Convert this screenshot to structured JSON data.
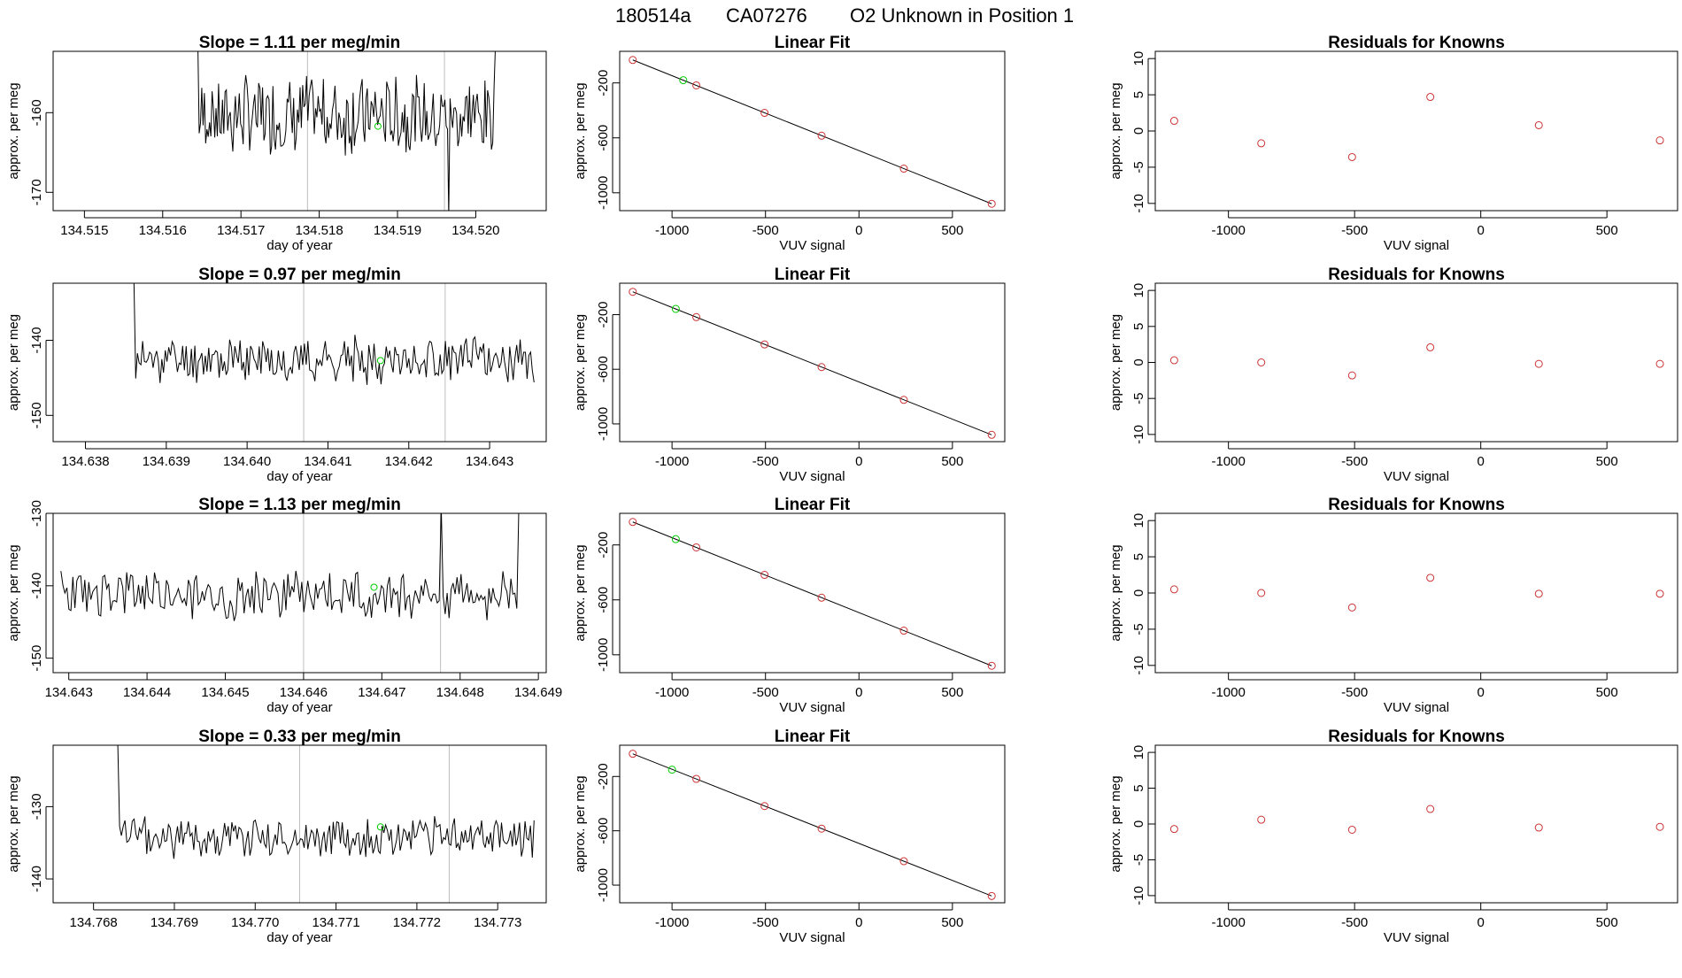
{
  "figure": {
    "title_parts": [
      "180514a",
      "CA07276",
      "O2 Unknown in Position  1"
    ]
  },
  "colors": {
    "line": "#000000",
    "frame": "#000000",
    "vline": "#bebebe",
    "green": "#00cc00",
    "red": "#cd3333",
    "fit": "#000000"
  },
  "labels": {
    "doy_xlabel": "day of year",
    "per_meg_ylabel": "approx. per meg",
    "vuv_xlabel": "VUV signal",
    "fit_title": "Linear Fit",
    "resid_title": "Residuals for Knowns"
  },
  "chart_data": [
    {
      "type": "line",
      "panel": "time",
      "row": 1,
      "title": "Slope =  1.11  per meg/min",
      "xlabel": "day of year",
      "ylabel": "approx. per meg",
      "xlim": [
        134.5146,
        134.5209
      ],
      "ylim": [
        -172.3,
        -152.3
      ],
      "xticks": [
        "134.515",
        "134.516",
        "134.517",
        "134.518",
        "134.519",
        "134.520"
      ],
      "yticks": [
        "-160",
        "-170"
      ],
      "start": 134.51645,
      "end": 134.52025,
      "level": -160.3,
      "amp": 4.2,
      "seed": 7,
      "spikes": [
        {
          "x": 134.51645,
          "y": -152.0
        },
        {
          "x": 134.52025,
          "y": -152.0
        },
        {
          "x": 134.51965,
          "y": -173.0
        }
      ],
      "vlines": [
        134.51785,
        134.5196
      ],
      "green_point": {
        "x": 134.51875,
        "y": -161.7
      }
    },
    {
      "type": "line",
      "panel": "time",
      "row": 2,
      "title": "Slope =  0.97  per meg/min",
      "xlabel": "day of year",
      "ylabel": "approx. per meg",
      "xlim": [
        134.6376,
        134.6437
      ],
      "ylim": [
        -153.5,
        -132.4
      ],
      "xticks": [
        "134.638",
        "134.639",
        "134.640",
        "134.641",
        "134.642",
        "134.643"
      ],
      "yticks": [
        "-140",
        "-150"
      ],
      "start": 134.6386,
      "end": 134.64355,
      "level": -142.6,
      "amp": 2.6,
      "seed": 11,
      "spikes": [
        {
          "x": 134.6386,
          "y": -132.0
        }
      ],
      "vlines": [
        134.6407,
        134.64245
      ],
      "green_point": {
        "x": 134.64165,
        "y": -142.7
      }
    },
    {
      "type": "line",
      "panel": "time",
      "row": 3,
      "title": "Slope =  1.13  per meg/min",
      "xlabel": "day of year",
      "ylabel": "approx. per meg",
      "xlim": [
        134.6428,
        134.6491
      ],
      "ylim": [
        -152.0,
        -130.0
      ],
      "xticks": [
        "134.643",
        "134.644",
        "134.645",
        "134.646",
        "134.647",
        "134.648",
        "134.649"
      ],
      "yticks": [
        "-130",
        "-140",
        "-150"
      ],
      "start": 134.6429,
      "end": 134.64875,
      "level": -141.2,
      "amp": 3.0,
      "seed": 23,
      "spikes": [
        {
          "x": 134.64775,
          "y": -129.0
        },
        {
          "x": 134.64875,
          "y": -129.0
        }
      ],
      "vlines": [
        134.646,
        134.64775
      ],
      "green_point": {
        "x": 134.6469,
        "y": -140.2
      }
    },
    {
      "type": "line",
      "panel": "time",
      "row": 4,
      "title": "Slope =  0.33  per meg/min",
      "xlabel": "day of year",
      "ylabel": "approx. per meg",
      "xlim": [
        134.7675,
        134.7736
      ],
      "ylim": [
        -143.3,
        -121.5
      ],
      "xticks": [
        "134.768",
        "134.769",
        "134.770",
        "134.771",
        "134.772",
        "134.773"
      ],
      "yticks": [
        "-130",
        "-140"
      ],
      "start": 134.7683,
      "end": 134.77345,
      "level": -134.2,
      "amp": 2.5,
      "seed": 37,
      "spikes": [
        {
          "x": 134.7683,
          "y": -121.0
        }
      ],
      "vlines": [
        134.77055,
        134.7724
      ],
      "green_point": {
        "x": 134.77155,
        "y": -132.8
      }
    },
    {
      "type": "scatter",
      "panel": "fit",
      "row": 1,
      "title": "Linear Fit",
      "xlabel": "VUV signal",
      "ylabel": "approx. per meg",
      "xlim": [
        -1280,
        780
      ],
      "ylim": [
        -1130,
        30
      ],
      "xticks": [
        -1000,
        -500,
        0,
        500
      ],
      "yticks": [
        -200,
        -600,
        -1000
      ],
      "fit_line": {
        "x": [
          -1210,
          710
        ],
        "y": [
          -33,
          -1080
        ]
      },
      "points": {
        "x": [
          -1210,
          -870,
          -505,
          -200,
          240,
          710
        ],
        "y": [
          -33,
          -218,
          -418,
          -584,
          -824,
          -1080
        ]
      },
      "unknown": {
        "x": -940,
        "y": -180
      }
    },
    {
      "type": "scatter",
      "panel": "fit",
      "row": 2,
      "title": "Linear Fit",
      "xlabel": "VUV signal",
      "ylabel": "approx. per meg",
      "xlim": [
        -1280,
        780
      ],
      "ylim": [
        -1130,
        30
      ],
      "xticks": [
        -1000,
        -500,
        0,
        500
      ],
      "yticks": [
        -200,
        -600,
        -1000
      ],
      "fit_line": {
        "x": [
          -1210,
          710
        ],
        "y": [
          -33,
          -1080
        ]
      },
      "points": {
        "x": [
          -1210,
          -870,
          -505,
          -200,
          240,
          710
        ],
        "y": [
          -33,
          -218,
          -418,
          -584,
          -824,
          -1080
        ]
      },
      "unknown": {
        "x": -980,
        "y": -158
      }
    },
    {
      "type": "scatter",
      "panel": "fit",
      "row": 3,
      "title": "Linear Fit",
      "xlabel": "VUV signal",
      "ylabel": "approx. per meg",
      "xlim": [
        -1280,
        780
      ],
      "ylim": [
        -1130,
        30
      ],
      "xticks": [
        -1000,
        -500,
        0,
        500
      ],
      "yticks": [
        -200,
        -600,
        -1000
      ],
      "fit_line": {
        "x": [
          -1210,
          710
        ],
        "y": [
          -33,
          -1080
        ]
      },
      "points": {
        "x": [
          -1210,
          -870,
          -505,
          -200,
          240,
          710
        ],
        "y": [
          -33,
          -218,
          -418,
          -584,
          -824,
          -1080
        ]
      },
      "unknown": {
        "x": -980,
        "y": -158
      }
    },
    {
      "type": "scatter",
      "panel": "fit",
      "row": 4,
      "title": "Linear Fit",
      "xlabel": "VUV signal",
      "ylabel": "approx. per meg",
      "xlim": [
        -1280,
        780
      ],
      "ylim": [
        -1130,
        30
      ],
      "xticks": [
        -1000,
        -500,
        0,
        500
      ],
      "yticks": [
        -200,
        -600,
        -1000
      ],
      "fit_line": {
        "x": [
          -1210,
          710
        ],
        "y": [
          -33,
          -1080
        ]
      },
      "points": {
        "x": [
          -1210,
          -870,
          -505,
          -200,
          240,
          710
        ],
        "y": [
          -33,
          -218,
          -418,
          -584,
          -824,
          -1080
        ]
      },
      "unknown": {
        "x": -1000,
        "y": -150
      }
    },
    {
      "type": "scatter",
      "panel": "resid",
      "row": 1,
      "title": "Residuals for Knowns",
      "xlabel": "VUV signal",
      "ylabel": "approx. per meg",
      "xlim": [
        -1290,
        780
      ],
      "ylim": [
        -11,
        11
      ],
      "xticks": [
        -1000,
        -500,
        0,
        500
      ],
      "yticks": [
        10,
        5,
        0,
        -5,
        -10
      ],
      "points": {
        "x": [
          -1215,
          -870,
          -510,
          -200,
          230,
          710
        ],
        "y": [
          1.4,
          -1.7,
          -3.6,
          4.7,
          0.8,
          -1.3
        ]
      }
    },
    {
      "type": "scatter",
      "panel": "resid",
      "row": 2,
      "title": "Residuals for Knowns",
      "xlabel": "VUV signal",
      "ylabel": "approx. per meg",
      "xlim": [
        -1290,
        780
      ],
      "ylim": [
        -11,
        11
      ],
      "xticks": [
        -1000,
        -500,
        0,
        500
      ],
      "yticks": [
        10,
        5,
        0,
        -5,
        -10
      ],
      "points": {
        "x": [
          -1215,
          -870,
          -510,
          -200,
          230,
          710
        ],
        "y": [
          0.3,
          0.0,
          -1.8,
          2.1,
          -0.2,
          -0.2
        ]
      }
    },
    {
      "type": "scatter",
      "panel": "resid",
      "row": 3,
      "title": "Residuals for Knowns",
      "xlabel": "VUV signal",
      "ylabel": "approx. per meg",
      "xlim": [
        -1290,
        780
      ],
      "ylim": [
        -11,
        11
      ],
      "xticks": [
        -1000,
        -500,
        0,
        500
      ],
      "yticks": [
        10,
        5,
        0,
        -5,
        -10
      ],
      "points": {
        "x": [
          -1215,
          -870,
          -510,
          -200,
          230,
          710
        ],
        "y": [
          0.5,
          0.0,
          -2.0,
          2.1,
          -0.1,
          -0.1
        ]
      }
    },
    {
      "type": "scatter",
      "panel": "resid",
      "row": 4,
      "title": "Residuals for Knowns",
      "xlabel": "VUV signal",
      "ylabel": "approx. per meg",
      "xlim": [
        -1290,
        780
      ],
      "ylim": [
        -11,
        11
      ],
      "xticks": [
        -1000,
        -500,
        0,
        500
      ],
      "yticks": [
        10,
        5,
        0,
        -5,
        -10
      ],
      "points": {
        "x": [
          -1215,
          -870,
          -510,
          -200,
          230,
          710
        ],
        "y": [
          -0.7,
          0.6,
          -0.8,
          2.1,
          -0.5,
          -0.4
        ]
      }
    }
  ]
}
